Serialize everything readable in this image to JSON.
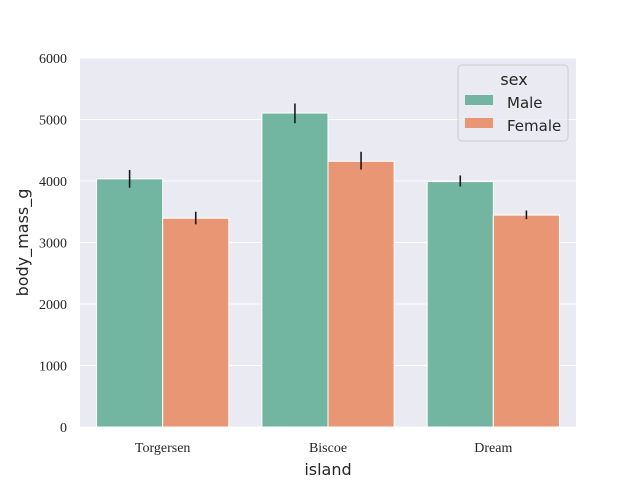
{
  "chart_data": {
    "type": "bar",
    "xlabel": "island",
    "ylabel": "body_mass_g",
    "ylim": [
      0,
      6000
    ],
    "yticks": [
      0,
      1000,
      2000,
      3000,
      4000,
      5000,
      6000
    ],
    "categories": [
      "Torgersen",
      "Biscoe",
      "Dream"
    ],
    "series": [
      {
        "name": "Male",
        "color": "#72b6a1",
        "values": [
          4035,
          5105,
          3990
        ],
        "ci_low": [
          3890,
          4940,
          3910
        ],
        "ci_high": [
          4180,
          5260,
          4090
        ]
      },
      {
        "name": "Female",
        "color": "#e99675",
        "values": [
          3395,
          4320,
          3445
        ],
        "ci_low": [
          3295,
          4185,
          3380
        ],
        "ci_high": [
          3500,
          4475,
          3520
        ]
      }
    ],
    "legend": {
      "title": "sex",
      "position": "top-right"
    },
    "grid": true
  }
}
